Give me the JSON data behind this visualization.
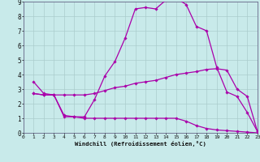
{
  "xlabel": "Windchill (Refroidissement éolien,°C)",
  "bg_color": "#c8eaea",
  "grid_color": "#aacccc",
  "line_color": "#aa00aa",
  "spine_color": "#666688",
  "x_ticks": [
    0,
    1,
    2,
    3,
    4,
    5,
    6,
    7,
    8,
    9,
    10,
    11,
    12,
    13,
    14,
    15,
    16,
    17,
    18,
    19,
    20,
    21,
    22,
    23
  ],
  "y_ticks": [
    0,
    1,
    2,
    3,
    4,
    5,
    6,
    7,
    8,
    9
  ],
  "xlim": [
    0,
    23
  ],
  "ylim": [
    0,
    9
  ],
  "curve1_x": [
    1,
    2,
    3,
    4,
    5,
    6,
    7,
    8,
    9,
    10,
    11,
    12,
    13,
    14,
    15,
    16,
    17,
    18,
    19,
    20,
    21,
    22,
    23
  ],
  "curve1_y": [
    3.5,
    2.7,
    2.6,
    1.2,
    1.1,
    1.1,
    2.3,
    3.9,
    4.9,
    6.5,
    8.5,
    8.6,
    8.5,
    9.1,
    9.25,
    8.8,
    7.3,
    7.0,
    4.5,
    2.8,
    2.5,
    1.4,
    0.1
  ],
  "curve2_x": [
    1,
    2,
    3,
    4,
    5,
    6,
    7,
    8,
    9,
    10,
    11,
    12,
    13,
    14,
    15,
    16,
    17,
    18,
    19,
    20,
    21,
    22,
    23
  ],
  "curve2_y": [
    2.7,
    2.6,
    2.6,
    1.1,
    1.1,
    1.0,
    1.0,
    1.0,
    1.0,
    1.0,
    1.0,
    1.0,
    1.0,
    1.0,
    1.0,
    0.8,
    0.5,
    0.3,
    0.2,
    0.15,
    0.1,
    0.05,
    0.0
  ],
  "curve3_x": [
    1,
    2,
    3,
    4,
    5,
    6,
    7,
    8,
    9,
    10,
    11,
    12,
    13,
    14,
    15,
    16,
    17,
    18,
    19,
    20,
    21,
    22,
    23
  ],
  "curve3_y": [
    2.7,
    2.6,
    2.6,
    2.6,
    2.6,
    2.6,
    2.7,
    2.9,
    3.1,
    3.2,
    3.4,
    3.5,
    3.6,
    3.8,
    4.0,
    4.1,
    4.2,
    4.35,
    4.4,
    4.3,
    3.0,
    2.5,
    0.1
  ]
}
